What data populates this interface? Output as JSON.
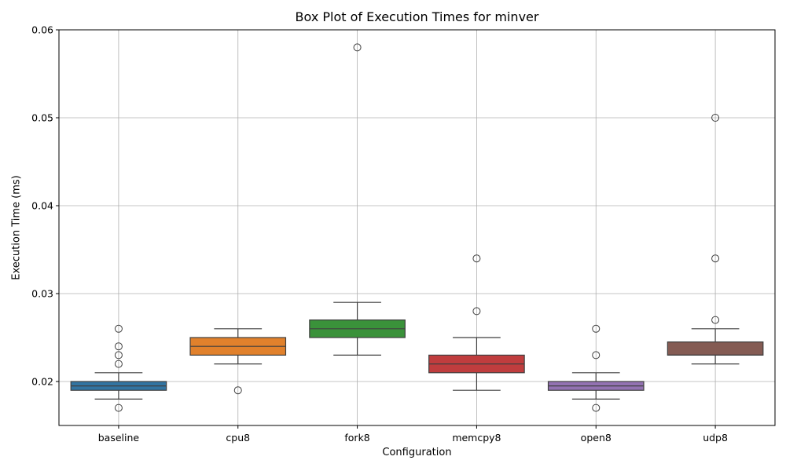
{
  "chart_data": {
    "type": "box",
    "title": "Box Plot of Execution Times for minver",
    "xlabel": "Configuration",
    "ylabel": "Execution Time (ms)",
    "ylim": [
      0.015,
      0.06
    ],
    "yticks": [
      0.02,
      0.03,
      0.04,
      0.05,
      0.06
    ],
    "ytick_labels": [
      "0.02",
      "0.03",
      "0.04",
      "0.05",
      "0.06"
    ],
    "grid": true,
    "categories": [
      "baseline",
      "cpu8",
      "fork8",
      "memcpy8",
      "open8",
      "udp8"
    ],
    "boxes": [
      {
        "name": "baseline",
        "color": "#3274a1",
        "whisker_low": 0.018,
        "q1": 0.019,
        "median": 0.0195,
        "q3": 0.02,
        "whisker_high": 0.021,
        "outliers": [
          0.017,
          0.022,
          0.023,
          0.024,
          0.026
        ]
      },
      {
        "name": "cpu8",
        "color": "#e1812c",
        "whisker_low": 0.022,
        "q1": 0.023,
        "median": 0.024,
        "q3": 0.025,
        "whisker_high": 0.026,
        "outliers": [
          0.019
        ]
      },
      {
        "name": "fork8",
        "color": "#3a923a",
        "whisker_low": 0.023,
        "q1": 0.025,
        "median": 0.026,
        "q3": 0.027,
        "whisker_high": 0.029,
        "outliers": [
          0.058
        ]
      },
      {
        "name": "memcpy8",
        "color": "#c03d3e",
        "whisker_low": 0.019,
        "q1": 0.021,
        "median": 0.022,
        "q3": 0.023,
        "whisker_high": 0.025,
        "outliers": [
          0.028,
          0.034
        ]
      },
      {
        "name": "open8",
        "color": "#9372b2",
        "whisker_low": 0.018,
        "q1": 0.019,
        "median": 0.0195,
        "q3": 0.02,
        "whisker_high": 0.021,
        "outliers": [
          0.017,
          0.023,
          0.026
        ]
      },
      {
        "name": "udp8",
        "color": "#845b53",
        "whisker_low": 0.022,
        "q1": 0.023,
        "median": 0.023,
        "q3": 0.0245,
        "whisker_high": 0.026,
        "outliers": [
          0.027,
          0.034,
          0.05
        ]
      }
    ]
  }
}
